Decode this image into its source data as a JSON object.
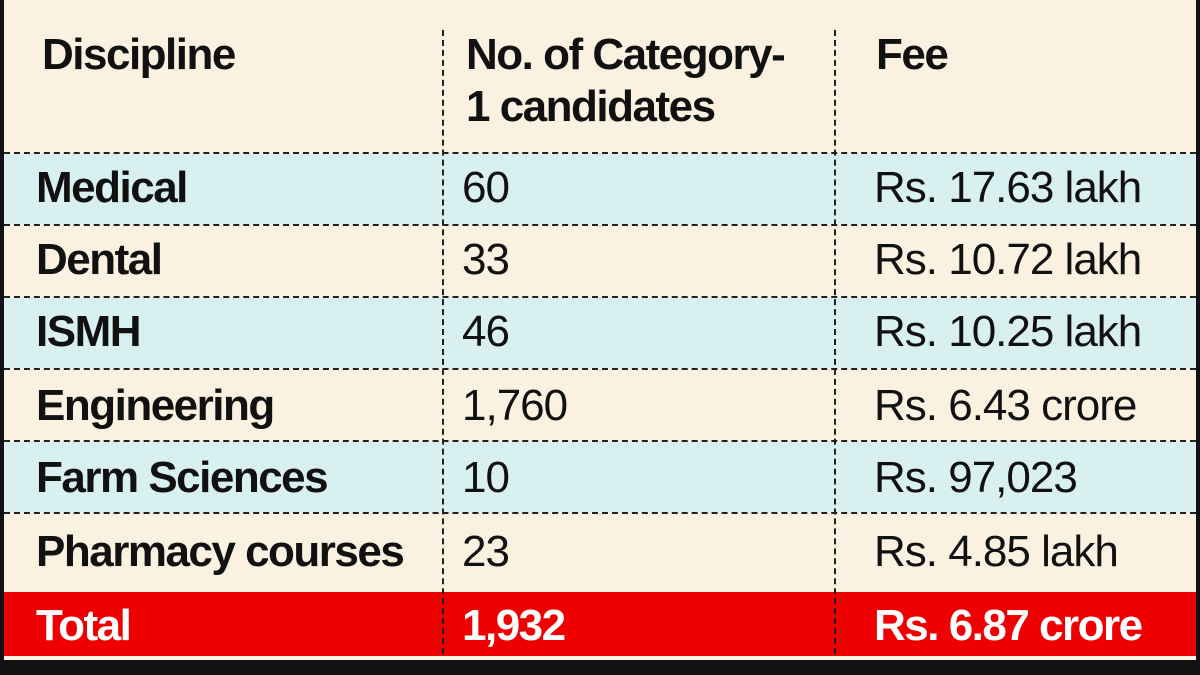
{
  "table": {
    "headers": {
      "discipline": "Discipline",
      "count_line1": "No. of Category-",
      "count_line2": "1 candidates",
      "fee": "Fee"
    },
    "rows": [
      {
        "discipline": "Medical",
        "count": "60",
        "fee": "Rs. 17.63 lakh"
      },
      {
        "discipline": "Dental",
        "count": "33",
        "fee": "Rs. 10.72 lakh"
      },
      {
        "discipline": "ISMH",
        "count": "46",
        "fee": "Rs. 10.25 lakh"
      },
      {
        "discipline": "Engineering",
        "count": "1,760",
        "fee": "Rs. 6.43 crore"
      },
      {
        "discipline": "Farm Sciences",
        "count": "10",
        "fee": "Rs. 97,023"
      },
      {
        "discipline": "Pharmacy courses",
        "count": "23",
        "fee": "Rs. 4.85 lakh"
      }
    ],
    "total": {
      "discipline": "Total",
      "count": "1,932",
      "fee": "Rs. 6.87 crore"
    }
  },
  "colors": {
    "header_bg": "#fbf1e1",
    "alt_row_bg": "#d9f0f1",
    "total_bg": "#ee0000"
  }
}
